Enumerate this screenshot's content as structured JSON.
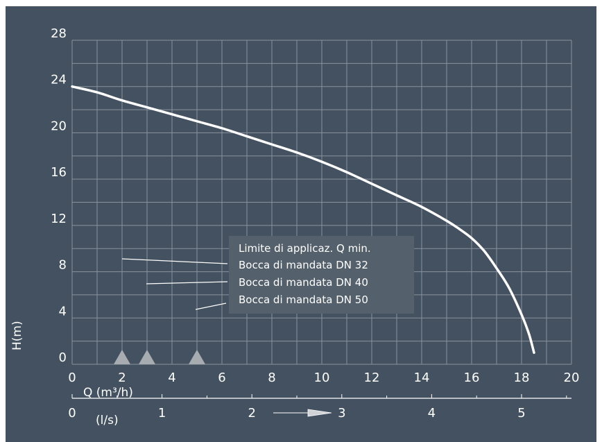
{
  "colors": {
    "background": "#435160",
    "grid": "#8a939d",
    "curve": "#ffffff",
    "text": "#ffffff",
    "marker": "#a7acb1",
    "legend_box": "#54606c"
  },
  "chart_data": {
    "type": "line",
    "title": "",
    "xlabel": "Q  (m³/h)",
    "ylabel": "H(m)",
    "secondary_xlabel": "(l/s)",
    "xlim": [
      0,
      20
    ],
    "ylim": [
      0,
      28
    ],
    "x_ticks": [
      "0",
      "2",
      "4",
      "6",
      "8",
      "10",
      "12",
      "14",
      "16",
      "18",
      "20"
    ],
    "y_ticks": [
      "0",
      "4",
      "8",
      "12",
      "16",
      "20",
      "24",
      "28"
    ],
    "secondary_x_ticks": [
      "0",
      "1",
      "2",
      "3",
      "4",
      "5"
    ],
    "grid": true,
    "series": [
      {
        "x": [
          0,
          1,
          2,
          3,
          4,
          5,
          6,
          7,
          8,
          9,
          10,
          11,
          12,
          13,
          14,
          15,
          15.5,
          16,
          16.5,
          17,
          17.5,
          18,
          18.3,
          18.5
        ],
        "y": [
          24,
          23.5,
          22.8,
          22.2,
          21.6,
          21.0,
          20.4,
          19.7,
          19.0,
          18.3,
          17.5,
          16.6,
          15.6,
          14.6,
          13.6,
          12.4,
          11.7,
          10.9,
          9.8,
          8.3,
          6.6,
          4.3,
          2.6,
          1.0
        ]
      }
    ],
    "markers_x": [
      2,
      3,
      5
    ],
    "legend": [
      "Limite di applicaz. Q min.",
      "Bocca di mandata DN 32",
      "Bocca di mandata DN 40",
      "Bocca di mandata DN 50"
    ]
  }
}
